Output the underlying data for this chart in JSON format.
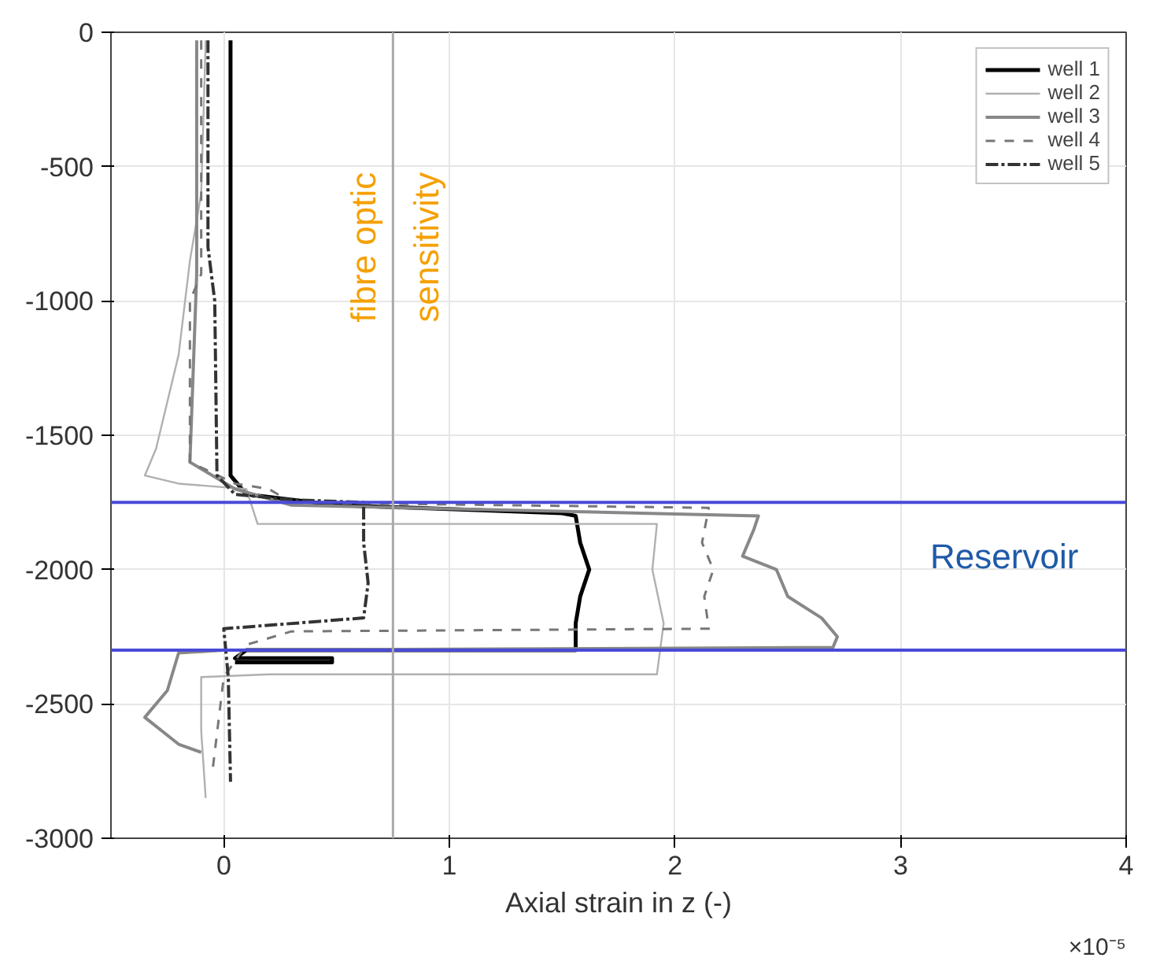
{
  "chart_data": {
    "type": "line",
    "xlabel": "Axial strain in z (-)",
    "xlim": [
      -0.5,
      4
    ],
    "ylim": [
      -3000,
      0
    ],
    "xticks": [
      0,
      1,
      2,
      3,
      4
    ],
    "yticks": [
      0,
      -500,
      -1000,
      -1500,
      -2000,
      -2500,
      -3000
    ],
    "grid": true,
    "legend": "top right",
    "series": [
      {
        "name": "well 1",
        "color": "#000000",
        "x": [
          0.03,
          0.03,
          0.1,
          0.5,
          1.5,
          1.56,
          1.58,
          1.62,
          1.58,
          1.56,
          1.56,
          0.1,
          0.05,
          0.48,
          0.48,
          0.05
        ],
        "values": [
          -30,
          -1650,
          -1720,
          -1760,
          -1790,
          -1800,
          -1900,
          -2000,
          -2100,
          -2200,
          -2300,
          -2300,
          -2330,
          -2330,
          -2345,
          -2345
        ]
      },
      {
        "name": "well 2",
        "color": "#b0b0b0",
        "x": [
          -0.08,
          -0.1,
          -0.15,
          -0.2,
          -0.3,
          -0.35,
          -0.2,
          0.1,
          0.15,
          1.92,
          1.9,
          1.95,
          1.92,
          0.2,
          -0.1,
          -0.1,
          -0.08
        ],
        "values": [
          -30,
          -600,
          -850,
          -1200,
          -1550,
          -1650,
          -1680,
          -1700,
          -1830,
          -1830,
          -2000,
          -2200,
          -2390,
          -2390,
          -2400,
          -2600,
          -2850
        ]
      },
      {
        "name": "well 3",
        "color": "#888888",
        "x": [
          -0.12,
          -0.12,
          -0.15,
          0.05,
          0.3,
          2.37,
          2.35,
          2.3,
          2.45,
          2.5,
          2.65,
          2.72,
          2.7,
          0.0,
          -0.2,
          -0.25,
          -0.35,
          -0.2,
          -0.1
        ],
        "values": [
          -30,
          -900,
          -1600,
          -1700,
          -1760,
          -1800,
          -1850,
          -1950,
          -2000,
          -2100,
          -2180,
          -2250,
          -2290,
          -2300,
          -2310,
          -2450,
          -2550,
          -2650,
          -2680
        ],
        "line_style": "solid"
      },
      {
        "name": "well 4",
        "color": "#777777",
        "x": [
          -0.1,
          -0.1,
          -0.15,
          -0.15,
          0.05,
          0.2,
          0.3,
          2.15,
          2.12,
          2.17,
          2.13,
          2.15,
          0.3,
          0.1,
          0.0,
          -0.05
        ],
        "values": [
          -30,
          -900,
          -1000,
          -1600,
          -1680,
          -1700,
          -1750,
          -1770,
          -1900,
          -2000,
          -2100,
          -2220,
          -2230,
          -2280,
          -2400,
          -2750
        ],
        "line_style": "dashed"
      },
      {
        "name": "well 5",
        "color": "#333333",
        "x": [
          -0.07,
          -0.07,
          -0.04,
          -0.03,
          0.05,
          0.3,
          0.62,
          0.62,
          0.64,
          0.62,
          0.0,
          0.02,
          0.03
        ],
        "values": [
          -30,
          -800,
          -1000,
          -1650,
          -1720,
          -1740,
          -1750,
          -1900,
          -2050,
          -2180,
          -2220,
          -2400,
          -2790
        ],
        "line_style": "dashdot"
      }
    ],
    "ref_lines": [
      {
        "axis": "y",
        "value": -1750,
        "color": "#4a4ad8"
      },
      {
        "axis": "y",
        "value": -2300,
        "color": "#4a4ad8"
      },
      {
        "axis": "x",
        "value": 0.75,
        "color": "#aaaaaa",
        "label": "fibre optic\nsensitivity"
      }
    ],
    "annotations": [
      "Reservoir",
      "×10⁻⁵"
    ]
  }
}
